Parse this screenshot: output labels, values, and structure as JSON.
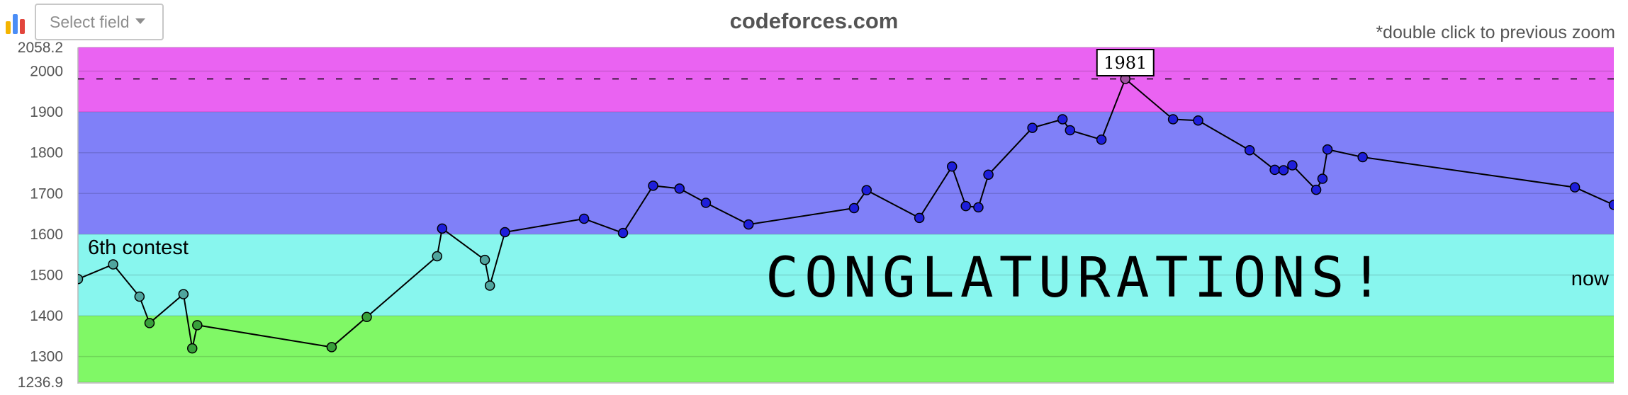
{
  "toolbar": {
    "chart_icon": "bar-chart-icon",
    "select_label": "Select field",
    "title": "codeforces.com",
    "hint": "*double click to previous zoom"
  },
  "colors": {
    "band_expert": "#ea63f2",
    "band_specialist_blue": "#8080f8",
    "band_cyan": "#88f6ee",
    "band_green": "#80f866",
    "line": "#000000",
    "point_magenta": "#a0529f",
    "point_blue": "#1e1edb",
    "point_cyan": "#4fa59e",
    "point_green": "#38a03a"
  },
  "chart_data": {
    "type": "line",
    "title": "",
    "xlabel": "",
    "ylabel": "",
    "ylim": [
      1236.9,
      2058.2
    ],
    "yticks": [
      "2058.2",
      "2000",
      "1900",
      "1800",
      "1700",
      "1600",
      "1500",
      "1400",
      "1300",
      "1236.9"
    ],
    "grid": true,
    "bands": [
      {
        "from": 1900,
        "to": 2058.2,
        "color": "band_expert"
      },
      {
        "from": 1600,
        "to": 1900,
        "color": "band_specialist_blue"
      },
      {
        "from": 1400,
        "to": 1600,
        "color": "band_cyan"
      },
      {
        "from": 1236.9,
        "to": 1400,
        "color": "band_green"
      }
    ],
    "reference_line": 1981,
    "x": [
      0,
      0.028,
      0.049,
      0.057,
      0.084,
      0.091,
      0.095,
      0.202,
      0.23,
      0.286,
      0.29,
      0.324,
      0.328,
      0.34,
      0.403,
      0.434,
      0.458,
      0.479,
      0.5,
      0.534,
      0.618,
      0.628,
      0.67,
      0.696,
      0.707,
      0.717,
      0.725,
      0.76,
      0.784,
      0.79,
      0.815,
      0.834,
      0.872,
      0.892,
      0.933,
      0.953,
      0.96,
      0.967,
      0.986,
      0.991,
      0.995,
      1.023,
      1.192,
      1.223
    ],
    "values": [
      1490,
      1526,
      1447,
      1382,
      1453,
      1320,
      1377,
      1323,
      1397,
      1546,
      1614,
      1537,
      1474,
      1605,
      1638,
      1603,
      1719,
      1712,
      1677,
      1624,
      1664,
      1708,
      1640,
      1766,
      1669,
      1666,
      1746,
      1861,
      1882,
      1855,
      1832,
      1981,
      1882,
      1879,
      1806,
      1758,
      1757,
      1769,
      1709,
      1736,
      1808,
      1789,
      1715,
      1672
    ],
    "highlight": {
      "value": 1981,
      "label": "1981"
    },
    "annotations": {
      "start": "6th contest",
      "center": "CONGLATURATIONS!",
      "end": "now"
    }
  }
}
